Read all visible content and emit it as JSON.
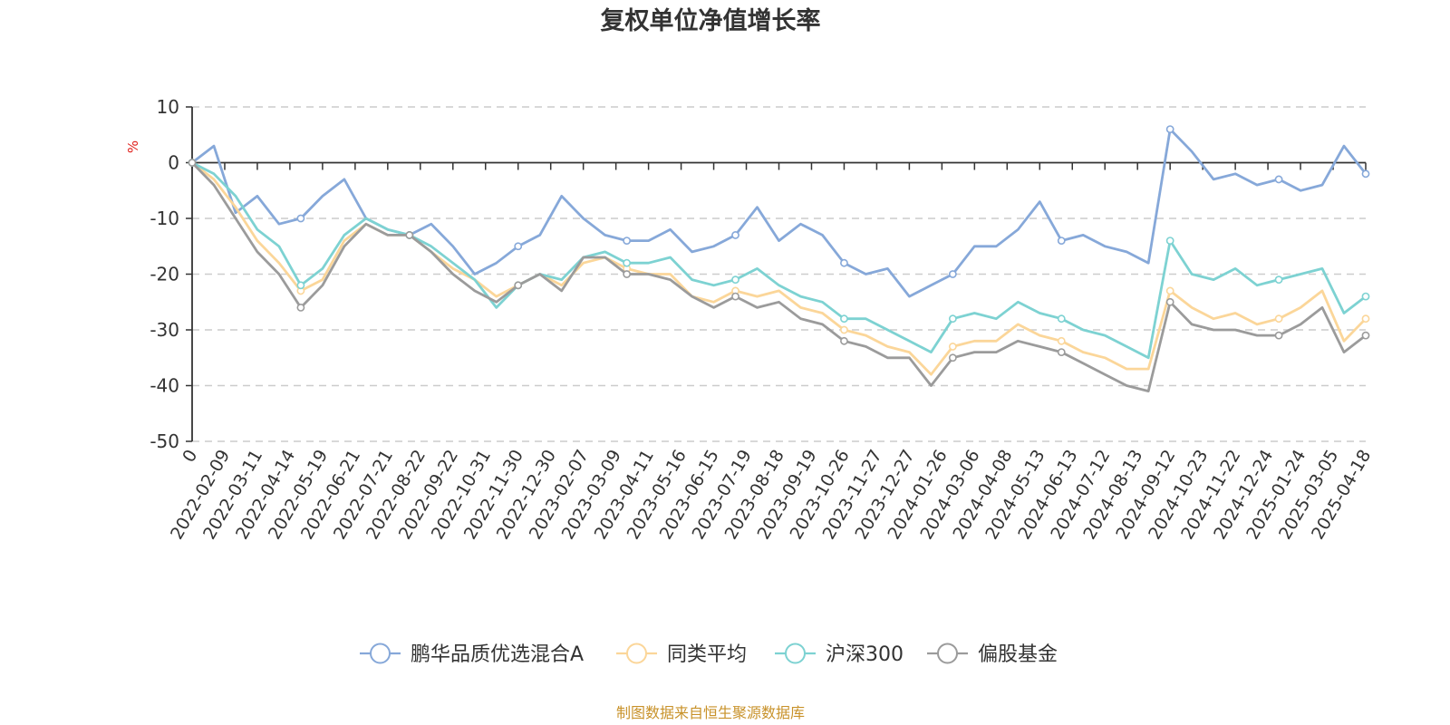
{
  "chart_data": {
    "type": "line",
    "title": "复权单位净值增长率",
    "ylabel": "%",
    "ylim": [
      -50,
      10
    ],
    "y_ticks": [
      10,
      0,
      -10,
      -20,
      -30,
      -40,
      -50
    ],
    "x_tick_labels": [
      "0",
      "2022-02-09",
      "2022-03-11",
      "2022-04-14",
      "2022-05-19",
      "2022-06-21",
      "2022-07-21",
      "2022-08-22",
      "2022-09-22",
      "2022-10-31",
      "2022-11-30",
      "2022-12-30",
      "2023-02-07",
      "2023-03-09",
      "2023-04-11",
      "2023-05-16",
      "2023-06-15",
      "2023-07-19",
      "2023-08-18",
      "2023-09-19",
      "2023-10-26",
      "2023-11-27",
      "2023-12-27",
      "2024-01-26",
      "2024-03-06",
      "2024-04-08",
      "2024-05-13",
      "2024-06-13",
      "2024-07-12",
      "2024-08-13",
      "2024-09-12",
      "2024-10-23",
      "2024-11-22",
      "2024-12-24",
      "2025-01-24",
      "2025-03-05",
      "2025-04-18"
    ],
    "grid": true,
    "legend_position": "bottom",
    "series": [
      {
        "name": "鹏华品质优选混合A",
        "color": "#86a8d9",
        "values": [
          0,
          3,
          -9,
          -6,
          -11,
          -10,
          -6,
          -3,
          -10,
          -12,
          -13,
          -11,
          -15,
          -20,
          -18,
          -15,
          -13,
          -6,
          -10,
          -13,
          -14,
          -14,
          -12,
          -16,
          -15,
          -13,
          -8,
          -14,
          -11,
          -13,
          -18,
          -20,
          -19,
          -24,
          -22,
          -20,
          -15,
          -15,
          -12,
          -7,
          -14,
          -13,
          -15,
          -16,
          -18,
          6,
          2,
          -3,
          -2,
          -4,
          -3,
          -5,
          -4,
          3,
          -2
        ]
      },
      {
        "name": "同类平均",
        "color": "#fbd699",
        "values": [
          0,
          -3,
          -8,
          -14,
          -18,
          -23,
          -21,
          -14,
          -11,
          -13,
          -13,
          -16,
          -19,
          -21,
          -24,
          -22,
          -20,
          -22,
          -18,
          -17,
          -19,
          -20,
          -20,
          -24,
          -25,
          -23,
          -24,
          -23,
          -26,
          -27,
          -30,
          -31,
          -33,
          -34,
          -38,
          -33,
          -32,
          -32,
          -29,
          -31,
          -32,
          -34,
          -35,
          -37,
          -37,
          -23,
          -26,
          -28,
          -27,
          -29,
          -28,
          -26,
          -23,
          -32,
          -28
        ]
      },
      {
        "name": "沪深300",
        "color": "#7dd2d2",
        "values": [
          0,
          -2,
          -6,
          -12,
          -15,
          -22,
          -19,
          -13,
          -10,
          -12,
          -13,
          -15,
          -18,
          -21,
          -26,
          -22,
          -20,
          -21,
          -17,
          -16,
          -18,
          -18,
          -17,
          -21,
          -22,
          -21,
          -19,
          -22,
          -24,
          -25,
          -28,
          -28,
          -30,
          -32,
          -34,
          -28,
          -27,
          -28,
          -25,
          -27,
          -28,
          -30,
          -31,
          -33,
          -35,
          -14,
          -20,
          -21,
          -19,
          -22,
          -21,
          -20,
          -19,
          -27,
          -24
        ]
      },
      {
        "name": "偏股基金",
        "color": "#9b9b9b",
        "values": [
          0,
          -4,
          -10,
          -16,
          -20,
          -26,
          -22,
          -15,
          -11,
          -13,
          -13,
          -16,
          -20,
          -23,
          -25,
          -22,
          -20,
          -23,
          -17,
          -17,
          -20,
          -20,
          -21,
          -24,
          -26,
          -24,
          -26,
          -25,
          -28,
          -29,
          -32,
          -33,
          -35,
          -35,
          -40,
          -35,
          -34,
          -34,
          -32,
          -33,
          -34,
          -36,
          -38,
          -40,
          -41,
          -25,
          -29,
          -30,
          -30,
          -31,
          -31,
          -29,
          -26,
          -34,
          -31
        ]
      }
    ]
  },
  "footer": {
    "source": "制图数据来自恒生聚源数据库"
  }
}
